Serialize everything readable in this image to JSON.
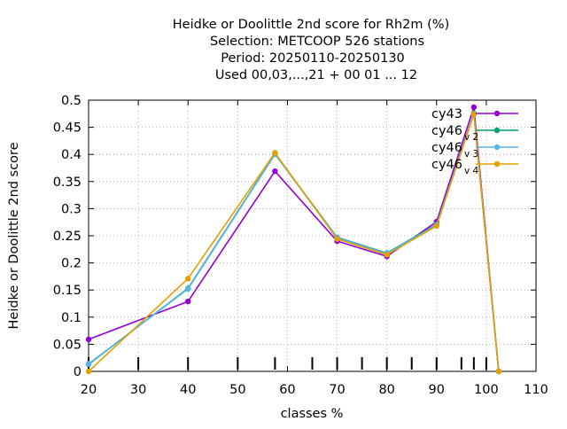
{
  "chart_data": {
    "type": "line",
    "title_lines": [
      "Heidke or Doolittle 2nd score  for Rh2m (%)",
      "Selection: METCOOP    526 stations",
      "Period: 20250110-20250130",
      "Used  00,03,...,21  + 00 01 ... 12"
    ],
    "xlabel": "classes %",
    "ylabel": "Heidke or Doolittle 2nd score",
    "xlim": [
      20,
      110
    ],
    "ylim": [
      0,
      0.5
    ],
    "x_ticks": [
      "20",
      "30",
      "40",
      "50",
      "60",
      "70",
      "80",
      "90",
      "100",
      "110"
    ],
    "y_ticks": [
      "0",
      "0.05",
      "0.1",
      "0.15",
      "0.2",
      "0.25",
      "0.3",
      "0.35",
      "0.4",
      "0.45",
      "0.5"
    ],
    "class_marks": [
      20,
      30,
      40,
      50,
      57.5,
      65,
      70,
      75,
      80,
      85,
      90,
      95,
      97.5,
      100
    ],
    "legend_position": "top-right",
    "series": [
      {
        "name": "cy43",
        "sub": "",
        "color": "#9400d3",
        "x": [
          20,
          40,
          57.5,
          70,
          80,
          90,
          97.5,
          102.5
        ],
        "y": [
          0.059,
          0.129,
          0.369,
          0.24,
          0.212,
          0.276,
          0.487,
          0.0
        ]
      },
      {
        "name": "cy46",
        "sub": "v 2",
        "color": "#009e73",
        "x": [
          20,
          40,
          57.5,
          70,
          80,
          90,
          97.5,
          102.5
        ],
        "y": [
          0.013,
          0.153,
          0.401,
          0.247,
          0.218,
          0.271,
          0.476,
          0.0
        ]
      },
      {
        "name": "cy46",
        "sub": "v 3",
        "color": "#56b4e9",
        "x": [
          20,
          40,
          57.5,
          70,
          80,
          90,
          97.5,
          102.5
        ],
        "y": [
          0.014,
          0.152,
          0.4,
          0.246,
          0.217,
          0.27,
          0.475,
          0.0
        ]
      },
      {
        "name": "cy46",
        "sub": "v 4",
        "color": "#e69f00",
        "x": [
          20,
          40,
          57.5,
          70,
          80,
          90,
          97.5,
          102.5
        ],
        "y": [
          0.0,
          0.171,
          0.403,
          0.244,
          0.215,
          0.268,
          0.474,
          0.0
        ]
      }
    ]
  }
}
